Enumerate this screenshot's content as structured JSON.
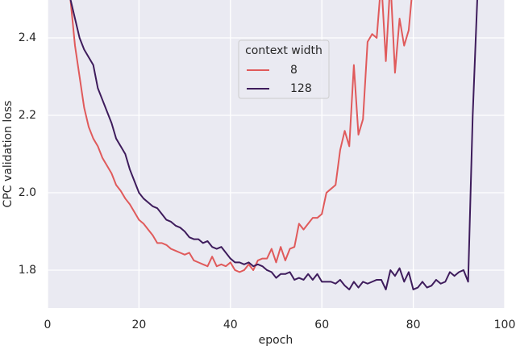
{
  "chart_data": {
    "type": "line",
    "xlabel": "epoch",
    "ylabel": "CPC validation loss",
    "legend_title": "context width",
    "legend_position": "upper center",
    "grid": true,
    "xlim": [
      0,
      100
    ],
    "xticks": [
      0,
      20,
      40,
      60,
      80,
      100
    ],
    "ylim": [
      1.702,
      2.498
    ],
    "yticks": [
      1.8,
      {
        "value": 2,
        "label": "2.0"
      },
      2.2,
      2.4
    ],
    "x": [
      5,
      6,
      7,
      8,
      9,
      10,
      11,
      12,
      13,
      14,
      15,
      16,
      17,
      18,
      19,
      20,
      21,
      22,
      23,
      24,
      25,
      26,
      27,
      28,
      29,
      30,
      31,
      32,
      33,
      34,
      35,
      36,
      37,
      38,
      39,
      40,
      41,
      42,
      43,
      44,
      45,
      46,
      47,
      48,
      49,
      50,
      51,
      52,
      53,
      54,
      55,
      56,
      57,
      58,
      59,
      60,
      61,
      62,
      63,
      64,
      65,
      66,
      67,
      68,
      69,
      70,
      71,
      72,
      73,
      74,
      75,
      76,
      77,
      78,
      79,
      80,
      81,
      82,
      83,
      84,
      85,
      86,
      87,
      88,
      89,
      90,
      91,
      92,
      93,
      94
    ],
    "series": [
      {
        "name": "8",
        "color": "#e05a5b",
        "values": [
          2.5,
          2.38,
          2.3,
          2.22,
          2.17,
          2.14,
          2.12,
          2.09,
          2.07,
          2.05,
          2.02,
          2.005,
          1.985,
          1.97,
          1.95,
          1.93,
          1.92,
          1.905,
          1.89,
          1.87,
          1.87,
          1.865,
          1.855,
          1.85,
          1.845,
          1.84,
          1.845,
          1.825,
          1.82,
          1.815,
          1.81,
          1.835,
          1.81,
          1.815,
          1.81,
          1.82,
          1.8,
          1.795,
          1.8,
          1.815,
          1.8,
          1.825,
          1.83,
          1.83,
          1.855,
          1.82,
          1.86,
          1.825,
          1.855,
          1.86,
          1.92,
          1.905,
          1.92,
          1.935,
          1.935,
          1.945,
          2.0,
          2.01,
          2.02,
          2.11,
          2.16,
          2.12,
          2.33,
          2.15,
          2.19,
          2.39,
          2.41,
          2.4,
          2.55,
          2.34,
          2.55,
          2.31,
          2.45,
          2.38,
          2.42,
          2.55,
          null,
          null,
          null,
          null,
          null,
          null,
          null,
          null,
          null,
          null,
          null,
          null,
          null,
          null
        ]
      },
      {
        "name": "128",
        "color": "#3e1c5c",
        "values": [
          2.5,
          2.45,
          2.4,
          2.37,
          2.35,
          2.33,
          2.27,
          2.24,
          2.21,
          2.18,
          2.14,
          2.12,
          2.1,
          2.06,
          2.03,
          2.0,
          1.985,
          1.975,
          1.965,
          1.96,
          1.945,
          1.93,
          1.925,
          1.915,
          1.91,
          1.9,
          1.885,
          1.88,
          1.88,
          1.87,
          1.875,
          1.86,
          1.855,
          1.86,
          1.845,
          1.83,
          1.82,
          1.82,
          1.815,
          1.82,
          1.81,
          1.815,
          1.81,
          1.8,
          1.795,
          1.78,
          1.79,
          1.79,
          1.795,
          1.775,
          1.78,
          1.775,
          1.79,
          1.775,
          1.79,
          1.77,
          1.77,
          1.77,
          1.765,
          1.775,
          1.76,
          1.75,
          1.77,
          1.755,
          1.77,
          1.765,
          1.77,
          1.775,
          1.775,
          1.75,
          1.8,
          1.785,
          1.805,
          1.77,
          1.795,
          1.75,
          1.755,
          1.77,
          1.755,
          1.76,
          1.775,
          1.765,
          1.77,
          1.795,
          1.785,
          1.795,
          1.8,
          1.77,
          2.2,
          2.5
        ]
      }
    ]
  }
}
